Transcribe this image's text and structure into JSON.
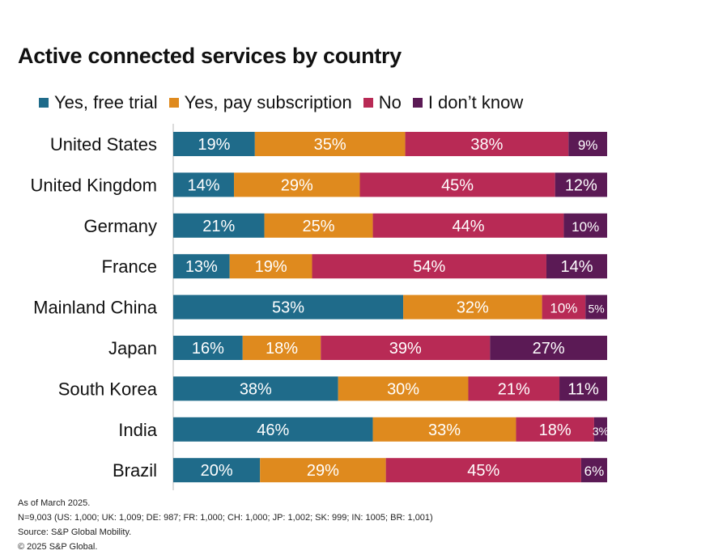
{
  "chart_data": {
    "type": "bar",
    "orientation": "horizontal",
    "stacked": true,
    "title": "Active connected services by country",
    "legend_position": "top",
    "xlim": [
      0,
      100
    ],
    "categories": [
      "United States",
      "United Kingdom",
      "Germany",
      "France",
      "Mainland China",
      "Japan",
      "South Korea",
      "India",
      "Brazil"
    ],
    "series": [
      {
        "name": "Yes, free trial",
        "color": "#1f6b8a",
        "values": [
          19,
          14,
          21,
          13,
          53,
          16,
          38,
          46,
          20
        ]
      },
      {
        "name": "Yes, pay subscription",
        "color": "#df8a1e",
        "values": [
          35,
          29,
          25,
          19,
          32,
          18,
          30,
          33,
          29
        ]
      },
      {
        "name": "No",
        "color": "#b82a55",
        "values": [
          38,
          45,
          44,
          54,
          10,
          39,
          21,
          18,
          45
        ]
      },
      {
        "name": "I don’t know",
        "color": "#5b1a55",
        "values": [
          9,
          12,
          10,
          14,
          5,
          27,
          11,
          3,
          6
        ]
      }
    ],
    "value_format": "percent"
  },
  "footnotes": [
    "As of March 2025.",
    "N=9,003 (US: 1,000; UK: 1,009; DE: 987; FR: 1,000; CH: 1,000; JP: 1,002; SK: 999; IN: 1005; BR: 1,001)",
    "Source: S&P Global Mobility.",
    "© 2025 S&P Global."
  ]
}
